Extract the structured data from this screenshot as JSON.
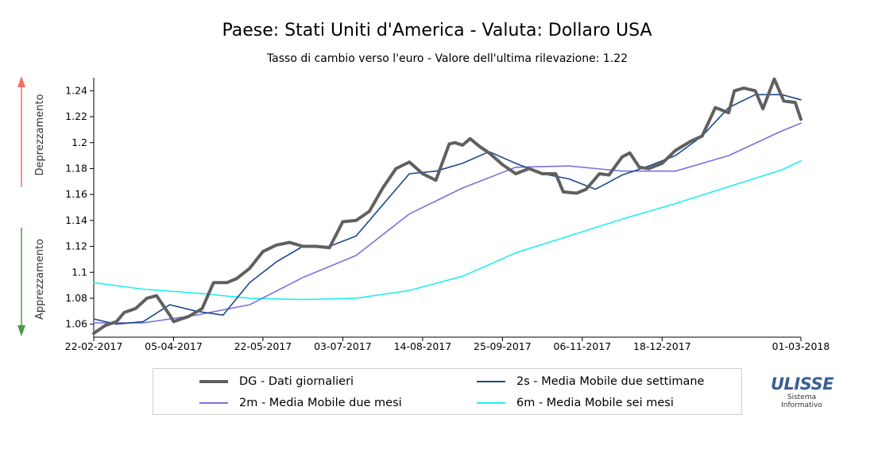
{
  "chart_data": {
    "type": "line",
    "title": "Paese: Stati Uniti d'America - Valuta: Dollaro USA",
    "subtitle": "Tasso di cambio verso l'euro - Valore dell'ultima rilevazione: 1.22",
    "x_tick_labels": [
      "22-02-2017",
      "05-04-2017",
      "22-05-2017",
      "03-07-2017",
      "14-08-2017",
      "25-09-2017",
      "06-11-2017",
      "18-12-2017",
      "01-03-2018"
    ],
    "x_tick_dates": [
      "2017-02-22",
      "2017-04-05",
      "2017-05-22",
      "2017-07-03",
      "2017-08-14",
      "2017-09-25",
      "2017-11-06",
      "2017-12-18",
      "2018-03-01"
    ],
    "x_range": [
      "2017-02-22",
      "2018-03-01"
    ],
    "ylim": [
      1.05,
      1.25
    ],
    "y_ticks": [
      1.06,
      1.08,
      1.1,
      1.12,
      1.14,
      1.16,
      1.18,
      1.2,
      1.22,
      1.24
    ],
    "y_tick_labels": [
      "1.06",
      "1.08",
      "1.1",
      "1.12",
      "1.14",
      "1.16",
      "1.18",
      "1.2",
      "1.22",
      "1.24"
    ],
    "grid": false,
    "side_labels": {
      "top": "Deprezzamento",
      "bottom": "Apprezzamento"
    },
    "side_arrow_colors": {
      "top": "#f07060",
      "bottom": "#4a9a4a"
    },
    "series": [
      {
        "name": "DG - Dati giornalieri",
        "color": "#606060",
        "x": [
          "2017-02-22",
          "2017-02-28",
          "2017-03-06",
          "2017-03-10",
          "2017-03-16",
          "2017-03-22",
          "2017-03-27",
          "2017-04-03",
          "2017-04-05",
          "2017-04-13",
          "2017-04-20",
          "2017-04-26",
          "2017-05-03",
          "2017-05-08",
          "2017-05-15",
          "2017-05-22",
          "2017-05-29",
          "2017-06-05",
          "2017-06-12",
          "2017-06-19",
          "2017-06-26",
          "2017-07-03",
          "2017-07-10",
          "2017-07-17",
          "2017-07-24",
          "2017-07-31",
          "2017-08-07",
          "2017-08-14",
          "2017-08-21",
          "2017-08-28",
          "2017-08-31",
          "2017-09-04",
          "2017-09-08",
          "2017-09-13",
          "2017-09-18",
          "2017-09-25",
          "2017-10-02",
          "2017-10-09",
          "2017-10-16",
          "2017-10-23",
          "2017-10-27",
          "2017-11-03",
          "2017-11-08",
          "2017-11-15",
          "2017-11-20",
          "2017-11-27",
          "2017-12-01",
          "2017-12-06",
          "2017-12-11",
          "2017-12-18",
          "2017-12-25",
          "2018-01-02",
          "2018-01-08",
          "2018-01-15",
          "2018-01-22",
          "2018-01-25",
          "2018-01-30",
          "2018-02-05",
          "2018-02-09",
          "2018-02-15",
          "2018-02-20",
          "2018-02-26",
          "2018-03-01"
        ],
        "values": [
          1.053,
          1.059,
          1.062,
          1.069,
          1.072,
          1.08,
          1.082,
          1.067,
          1.062,
          1.066,
          1.072,
          1.092,
          1.092,
          1.095,
          1.103,
          1.116,
          1.121,
          1.123,
          1.12,
          1.12,
          1.119,
          1.139,
          1.14,
          1.147,
          1.165,
          1.18,
          1.185,
          1.176,
          1.171,
          1.199,
          1.2,
          1.198,
          1.203,
          1.197,
          1.192,
          1.183,
          1.176,
          1.18,
          1.176,
          1.176,
          1.162,
          1.161,
          1.164,
          1.176,
          1.175,
          1.189,
          1.192,
          1.181,
          1.18,
          1.184,
          1.194,
          1.201,
          1.205,
          1.227,
          1.223,
          1.24,
          1.242,
          1.24,
          1.226,
          1.249,
          1.232,
          1.231,
          1.218
        ]
      },
      {
        "name": "2s - Media Mobile due settimane",
        "color": "#1a4a8a",
        "x": [
          "2017-02-22",
          "2017-03-06",
          "2017-03-20",
          "2017-04-03",
          "2017-04-17",
          "2017-05-01",
          "2017-05-15",
          "2017-05-29",
          "2017-06-12",
          "2017-06-26",
          "2017-07-10",
          "2017-07-24",
          "2017-08-07",
          "2017-08-21",
          "2017-09-04",
          "2017-09-18",
          "2017-10-02",
          "2017-10-16",
          "2017-10-30",
          "2017-11-13",
          "2017-11-27",
          "2017-12-11",
          "2017-12-25",
          "2018-01-08",
          "2018-01-22",
          "2018-02-05",
          "2018-02-19",
          "2018-03-01"
        ],
        "values": [
          1.064,
          1.06,
          1.062,
          1.075,
          1.07,
          1.067,
          1.092,
          1.108,
          1.12,
          1.12,
          1.128,
          1.152,
          1.176,
          1.178,
          1.184,
          1.193,
          1.184,
          1.176,
          1.172,
          1.164,
          1.175,
          1.182,
          1.19,
          1.205,
          1.227,
          1.237,
          1.237,
          1.233
        ]
      },
      {
        "name": "2m - Media Mobile due mesi",
        "color": "#7a6fe0",
        "x": [
          "2017-02-22",
          "2017-03-20",
          "2017-04-17",
          "2017-05-15",
          "2017-06-12",
          "2017-07-10",
          "2017-08-07",
          "2017-09-04",
          "2017-10-02",
          "2017-10-30",
          "2017-11-27",
          "2017-12-25",
          "2018-01-22",
          "2018-02-19",
          "2018-03-01"
        ],
        "values": [
          1.061,
          1.061,
          1.067,
          1.075,
          1.096,
          1.113,
          1.145,
          1.165,
          1.181,
          1.182,
          1.178,
          1.178,
          1.19,
          1.209,
          1.215
        ]
      },
      {
        "name": "6m - Media Mobile sei mesi",
        "color": "#22eeee",
        "x": [
          "2017-02-22",
          "2017-03-20",
          "2017-04-17",
          "2017-05-15",
          "2017-06-12",
          "2017-07-10",
          "2017-08-07",
          "2017-09-04",
          "2017-10-02",
          "2017-10-30",
          "2017-11-27",
          "2017-12-25",
          "2018-01-22",
          "2018-02-19",
          "2018-03-01"
        ],
        "values": [
          1.092,
          1.087,
          1.084,
          1.08,
          1.079,
          1.08,
          1.086,
          1.097,
          1.115,
          1.128,
          1.141,
          1.153,
          1.166,
          1.179,
          1.186
        ]
      }
    ],
    "legend": [
      {
        "label": "DG - Dati giornalieri",
        "color": "#606060"
      },
      {
        "label": "2s - Media Mobile due settimane",
        "color": "#1a4a8a"
      },
      {
        "label": "2m - Media Mobile due mesi",
        "color": "#7a6fe0"
      },
      {
        "label": "6m - Media Mobile sei mesi",
        "color": "#22eeee"
      }
    ]
  },
  "logo": {
    "main": "ULISSE",
    "line1": "Sistema",
    "line2": "Informativo"
  }
}
